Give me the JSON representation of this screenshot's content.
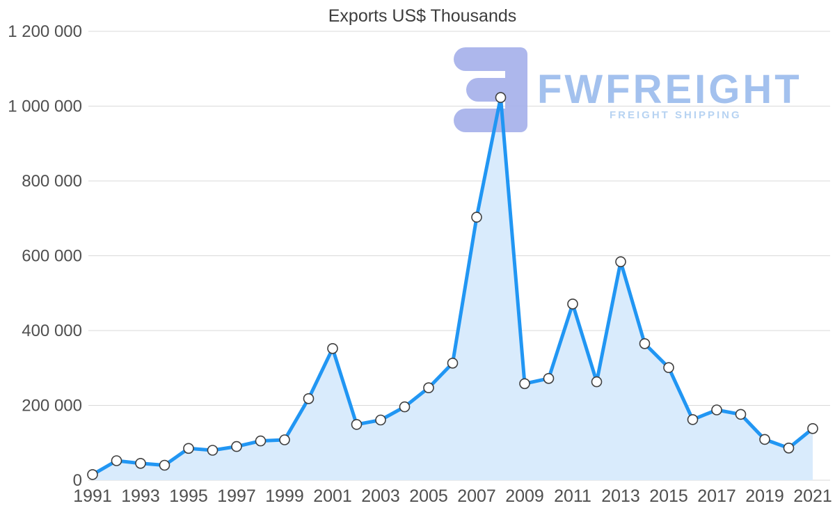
{
  "chart_data": {
    "type": "area",
    "title": "Exports US$ Thousands",
    "xlabel": "",
    "ylabel": "",
    "legend": "none",
    "grid": "horizontal",
    "x": [
      1991,
      1992,
      1993,
      1994,
      1995,
      1996,
      1997,
      1998,
      1999,
      2000,
      2001,
      2002,
      2003,
      2004,
      2005,
      2006,
      2007,
      2008,
      2009,
      2010,
      2011,
      2012,
      2013,
      2014,
      2015,
      2016,
      2017,
      2018,
      2019,
      2020,
      2021
    ],
    "values": [
      15000,
      52000,
      45000,
      40000,
      85000,
      80000,
      90000,
      105000,
      108000,
      218000,
      352000,
      149000,
      161000,
      196000,
      247000,
      313000,
      703000,
      1023000,
      258000,
      272000,
      471000,
      263000,
      584000,
      365000,
      301000,
      162000,
      188000,
      176000,
      109000,
      86000,
      138000
    ],
    "ylim": [
      0,
      1200000
    ],
    "y_tick_step": 200000,
    "x_tick_step": 2,
    "y_tick_format": "space-grouped",
    "line_color": "#2196f3",
    "fill_color": "#d9ebfc",
    "marker_fill": "#ffffff",
    "marker_stroke": "#3f3f3f",
    "grid_color": "#d9d9d9",
    "axis_label_color": "#4f4f4f",
    "title_color": "#3d3d3d"
  },
  "watermark": {
    "brand": "FWFREIGHT",
    "tagline": "FREIGHT SHIPPING",
    "brand_color": "#a3c1ee",
    "tagline_color": "#b7d3f2",
    "icon_color": "#a9b4eb"
  }
}
